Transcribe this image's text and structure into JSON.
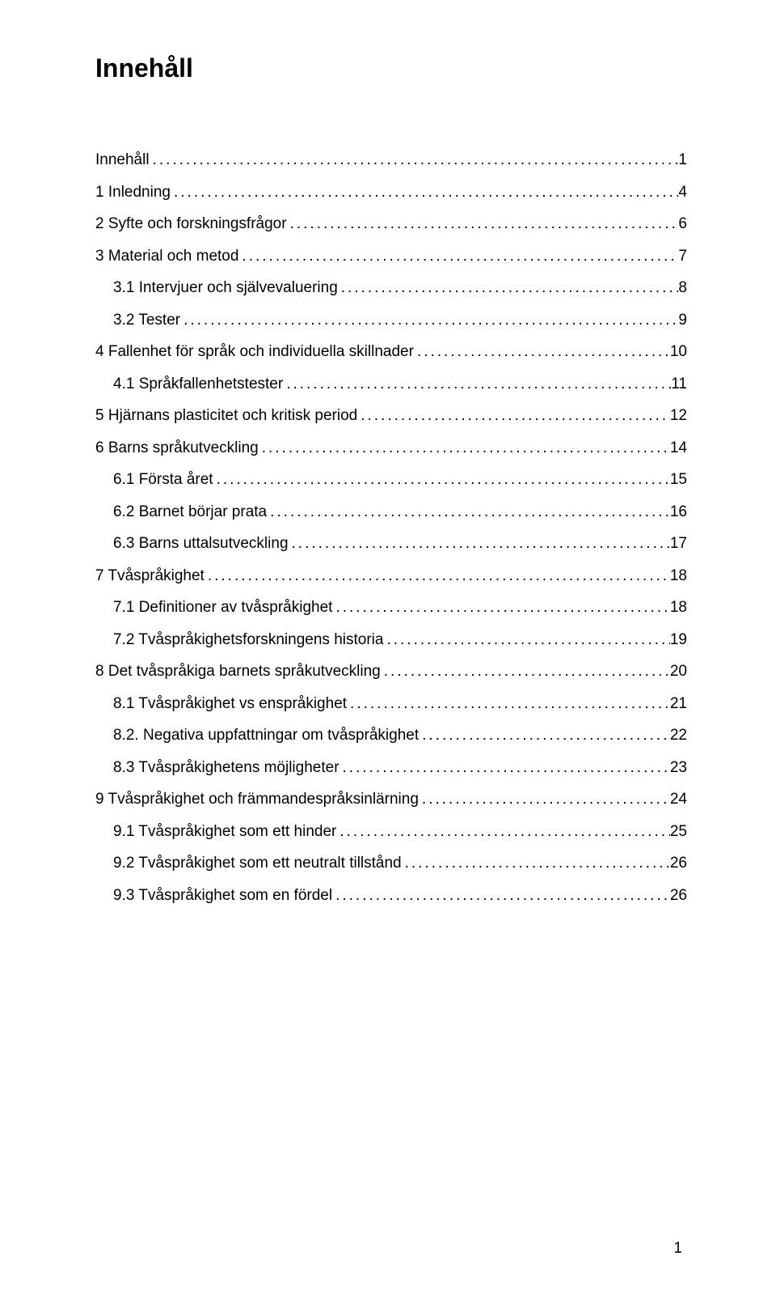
{
  "title": "Innehåll",
  "toc": [
    {
      "label": "Innehåll",
      "page": "1",
      "level": 1
    },
    {
      "label": "1 Inledning",
      "page": "4",
      "level": 1
    },
    {
      "label": "2 Syfte och forskningsfrågor",
      "page": "6",
      "level": 1
    },
    {
      "label": "3 Material och metod",
      "page": "7",
      "level": 1
    },
    {
      "label": "3.1 Intervjuer och självevaluering",
      "page": "8",
      "level": 2
    },
    {
      "label": "3.2 Tester",
      "page": "9",
      "level": 2
    },
    {
      "label": "4 Fallenhet för språk och individuella skillnader",
      "page": "10",
      "level": 1
    },
    {
      "label": "4.1 Språkfallenhetstester",
      "page": "11",
      "level": 2
    },
    {
      "label": "5 Hjärnans plasticitet och kritisk period",
      "page": "12",
      "level": 1
    },
    {
      "label": "6 Barns språkutveckling",
      "page": "14",
      "level": 1
    },
    {
      "label": "6.1 Första året",
      "page": "15",
      "level": 2
    },
    {
      "label": "6.2 Barnet börjar prata",
      "page": "16",
      "level": 2
    },
    {
      "label": "6.3 Barns uttalsutveckling",
      "page": "17",
      "level": 2
    },
    {
      "label": "7 Tvåspråkighet",
      "page": "18",
      "level": 1
    },
    {
      "label": "7.1 Definitioner av tvåspråkighet",
      "page": "18",
      "level": 2
    },
    {
      "label": "7.2 Tvåspråkighetsforskningens historia",
      "page": "19",
      "level": 2
    },
    {
      "label": "8 Det tvåspråkiga barnets språkutveckling",
      "page": "20",
      "level": 1
    },
    {
      "label": "8.1 Tvåspråkighet vs enspråkighet",
      "page": "21",
      "level": 2
    },
    {
      "label": "8.2. Negativa uppfattningar om tvåspråkighet",
      "page": "22",
      "level": 2
    },
    {
      "label": "8.3 Tvåspråkighetens möjligheter",
      "page": "23",
      "level": 2
    },
    {
      "label": "9 Tvåspråkighet och främmandespråksinlärning",
      "page": "24",
      "level": 1
    },
    {
      "label": "9.1 Tvåspråkighet som ett hinder",
      "page": "25",
      "level": 2
    },
    {
      "label": "9.2 Tvåspråkighet som ett neutralt tillstånd",
      "page": "26",
      "level": 2
    },
    {
      "label": "9.3 Tvåspråkighet som en fördel",
      "page": "26",
      "level": 2
    }
  ],
  "page_number": "1"
}
